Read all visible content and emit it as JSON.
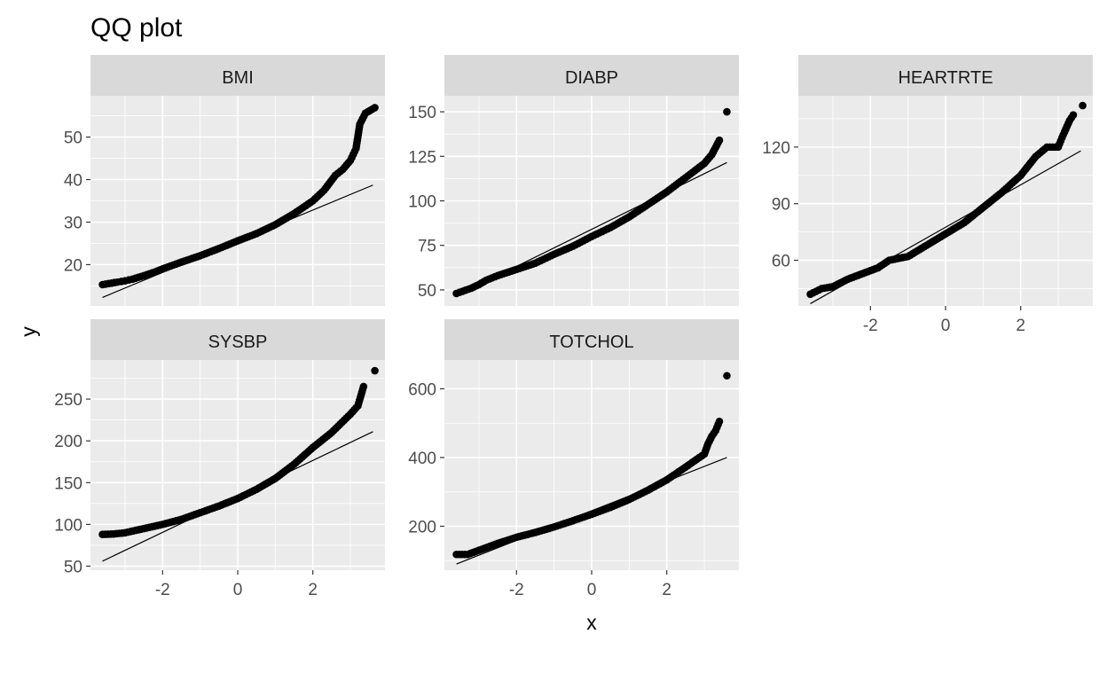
{
  "chart_data": {
    "type": "scatter",
    "title": "QQ plot",
    "xlabel": "x",
    "ylabel": "y",
    "grid": true,
    "colors": {
      "panel_background": "#ebebeb",
      "strip_background": "#d9d9d9",
      "grid_major": "#ffffff",
      "points": "#000000",
      "reference_line": "#000000"
    },
    "x_ticks": [
      -2,
      0,
      2
    ],
    "xlim": [
      -3.92,
      3.92
    ],
    "panels": [
      {
        "name": "BMI",
        "ylim": [
          10.3,
          59.7
        ],
        "y_ticks": [
          20,
          30,
          40,
          50
        ],
        "reference_line": {
          "x": [
            -3.6,
            3.6
          ],
          "y": [
            12.3,
            38.7
          ]
        },
        "quantiles": [
          {
            "x": -3.6,
            "y": 15.3
          },
          {
            "x": -3.2,
            "y": 15.9
          },
          {
            "x": -3.0,
            "y": 16.2
          },
          {
            "x": -2.8,
            "y": 16.6
          },
          {
            "x": -2.5,
            "y": 17.4
          },
          {
            "x": -2.2,
            "y": 18.3
          },
          {
            "x": -2.0,
            "y": 19.0
          },
          {
            "x": -1.5,
            "y": 20.6
          },
          {
            "x": -1.0,
            "y": 22.1
          },
          {
            "x": -0.5,
            "y": 23.8
          },
          {
            "x": 0.0,
            "y": 25.6
          },
          {
            "x": 0.5,
            "y": 27.3
          },
          {
            "x": 1.0,
            "y": 29.4
          },
          {
            "x": 1.5,
            "y": 32.0
          },
          {
            "x": 2.0,
            "y": 35.0
          },
          {
            "x": 2.3,
            "y": 37.5
          },
          {
            "x": 2.6,
            "y": 41.0
          },
          {
            "x": 2.8,
            "y": 42.4
          },
          {
            "x": 3.0,
            "y": 44.5
          },
          {
            "x": 3.15,
            "y": 47.3
          },
          {
            "x": 3.25,
            "y": 53.0
          },
          {
            "x": 3.4,
            "y": 55.6
          },
          {
            "x": 3.65,
            "y": 56.9
          }
        ]
      },
      {
        "name": "DIABP",
        "ylim": [
          41.0,
          159.0
        ],
        "y_ticks": [
          50,
          75,
          100,
          125,
          150
        ],
        "reference_line": {
          "x": [
            -3.6,
            3.6
          ],
          "y": [
            46.5,
            121.5
          ]
        },
        "quantiles": [
          {
            "x": -3.6,
            "y": 48.0
          },
          {
            "x": -3.2,
            "y": 51.0
          },
          {
            "x": -3.0,
            "y": 53.0
          },
          {
            "x": -2.8,
            "y": 55.5
          },
          {
            "x": -2.5,
            "y": 58.0
          },
          {
            "x": -2.0,
            "y": 61.5
          },
          {
            "x": -1.5,
            "y": 65.0
          },
          {
            "x": -1.0,
            "y": 70.0
          },
          {
            "x": -0.5,
            "y": 74.5
          },
          {
            "x": 0.0,
            "y": 80.0
          },
          {
            "x": 0.5,
            "y": 85.0
          },
          {
            "x": 1.0,
            "y": 91.0
          },
          {
            "x": 1.5,
            "y": 98.0
          },
          {
            "x": 2.0,
            "y": 105.0
          },
          {
            "x": 2.5,
            "y": 113.0
          },
          {
            "x": 3.0,
            "y": 121.0
          },
          {
            "x": 3.2,
            "y": 126.0
          },
          {
            "x": 3.4,
            "y": 134.0
          },
          {
            "x": 3.6,
            "y": 150.0
          }
        ]
      },
      {
        "name": "HEARTRTE",
        "ylim": [
          35.8,
          147.2
        ],
        "y_ticks": [
          60,
          90,
          120
        ],
        "reference_line": {
          "x": [
            -3.6,
            3.6
          ],
          "y": [
            37.0,
            118.0
          ]
        },
        "quantiles": [
          {
            "x": -3.6,
            "y": 42.0
          },
          {
            "x": -3.3,
            "y": 45.0
          },
          {
            "x": -3.0,
            "y": 46.0
          },
          {
            "x": -2.6,
            "y": 50.0
          },
          {
            "x": -2.2,
            "y": 53.0
          },
          {
            "x": -1.8,
            "y": 56.0
          },
          {
            "x": -1.5,
            "y": 60.0
          },
          {
            "x": -1.0,
            "y": 62.0
          },
          {
            "x": -0.5,
            "y": 68.0
          },
          {
            "x": 0.0,
            "y": 74.0
          },
          {
            "x": 0.5,
            "y": 80.0
          },
          {
            "x": 1.0,
            "y": 88.0
          },
          {
            "x": 1.5,
            "y": 96.0
          },
          {
            "x": 2.0,
            "y": 105.0
          },
          {
            "x": 2.4,
            "y": 115.0
          },
          {
            "x": 2.7,
            "y": 120.0
          },
          {
            "x": 3.0,
            "y": 120.0
          },
          {
            "x": 3.1,
            "y": 125.0
          },
          {
            "x": 3.3,
            "y": 134.0
          },
          {
            "x": 3.4,
            "y": 137.0
          },
          {
            "x": 3.65,
            "y": 142.0
          }
        ]
      },
      {
        "name": "SYSBP",
        "ylim": [
          45.2,
          296.8
        ],
        "y_ticks": [
          50,
          100,
          150,
          200,
          250
        ],
        "reference_line": {
          "x": [
            -3.6,
            3.6
          ],
          "y": [
            56.0,
            211.0
          ]
        },
        "quantiles": [
          {
            "x": -3.6,
            "y": 88.0
          },
          {
            "x": -3.3,
            "y": 88.5
          },
          {
            "x": -3.0,
            "y": 90.0
          },
          {
            "x": -2.5,
            "y": 95.0
          },
          {
            "x": -2.0,
            "y": 100.0
          },
          {
            "x": -1.5,
            "y": 106.0
          },
          {
            "x": -1.0,
            "y": 114.0
          },
          {
            "x": -0.5,
            "y": 122.0
          },
          {
            "x": 0.0,
            "y": 131.0
          },
          {
            "x": 0.5,
            "y": 142.0
          },
          {
            "x": 1.0,
            "y": 155.0
          },
          {
            "x": 1.5,
            "y": 172.0
          },
          {
            "x": 2.0,
            "y": 192.0
          },
          {
            "x": 2.5,
            "y": 210.0
          },
          {
            "x": 3.0,
            "y": 232.0
          },
          {
            "x": 3.2,
            "y": 242.0
          },
          {
            "x": 3.35,
            "y": 265.0
          },
          {
            "x": 3.65,
            "y": 284.0
          }
        ]
      },
      {
        "name": "TOTCHOL",
        "ylim": [
          72.2,
          683.8
        ],
        "y_ticks": [
          200,
          400,
          600
        ],
        "reference_line": {
          "x": [
            -3.6,
            3.6
          ],
          "y": [
            90.0,
            400.0
          ]
        },
        "quantiles": [
          {
            "x": -3.6,
            "y": 118.0
          },
          {
            "x": -3.3,
            "y": 118.0
          },
          {
            "x": -3.0,
            "y": 130.0
          },
          {
            "x": -2.5,
            "y": 150.0
          },
          {
            "x": -2.0,
            "y": 168.0
          },
          {
            "x": -1.5,
            "y": 182.0
          },
          {
            "x": -1.0,
            "y": 198.0
          },
          {
            "x": -0.5,
            "y": 216.0
          },
          {
            "x": 0.0,
            "y": 235.0
          },
          {
            "x": 0.5,
            "y": 255.0
          },
          {
            "x": 1.0,
            "y": 278.0
          },
          {
            "x": 1.5,
            "y": 305.0
          },
          {
            "x": 2.0,
            "y": 335.0
          },
          {
            "x": 2.5,
            "y": 372.0
          },
          {
            "x": 2.8,
            "y": 395.0
          },
          {
            "x": 3.0,
            "y": 410.0
          },
          {
            "x": 3.1,
            "y": 440.0
          },
          {
            "x": 3.2,
            "y": 462.0
          },
          {
            "x": 3.3,
            "y": 478.0
          },
          {
            "x": 3.4,
            "y": 505.0
          },
          {
            "x": 3.6,
            "y": 638.0
          }
        ]
      }
    ]
  }
}
